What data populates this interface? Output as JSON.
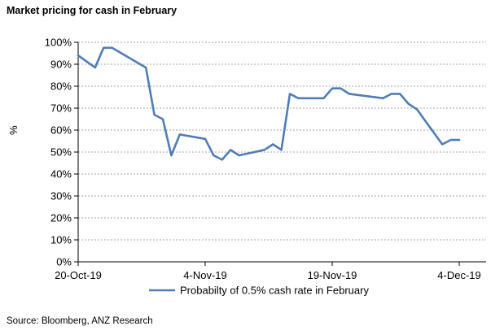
{
  "title": "Market pricing for cash in February",
  "source": "Source: Bloomberg, ANZ Research",
  "chart_data": {
    "type": "line",
    "title": "Market pricing for cash in February",
    "xlabel": "",
    "ylabel": "%",
    "ylim": [
      0,
      100
    ],
    "y_ticks": [
      0,
      10,
      20,
      30,
      40,
      50,
      60,
      70,
      80,
      90,
      100
    ],
    "y_tick_labels": [
      "0%",
      "10%",
      "20%",
      "30%",
      "40%",
      "50%",
      "60%",
      "70%",
      "80%",
      "90%",
      "100%"
    ],
    "x_tick_labels": [
      {
        "label": "20-Oct-19",
        "day": 0
      },
      {
        "label": "4-Nov-19",
        "day": 15
      },
      {
        "label": "19-Nov-19",
        "day": 30
      },
      {
        "label": "4-Dec-19",
        "day": 45
      }
    ],
    "xlim_days": [
      0,
      49
    ],
    "grid": true,
    "legend_position": "bottom",
    "colors": {
      "series": "#4f7db5",
      "grid": "#a6a6a6",
      "axis": "#000000"
    },
    "series": [
      {
        "name": "Probabilty of 0.5% cash rate in February",
        "x": [
          "2019-10-20",
          "2019-10-22",
          "2019-10-23",
          "2019-10-24",
          "2019-10-28",
          "2019-10-29",
          "2019-10-30",
          "2019-10-31",
          "2019-11-01",
          "2019-11-04",
          "2019-11-05",
          "2019-11-06",
          "2019-11-07",
          "2019-11-08",
          "2019-11-11",
          "2019-11-12",
          "2019-11-13",
          "2019-11-14",
          "2019-11-15",
          "2019-11-18",
          "2019-11-19",
          "2019-11-20",
          "2019-11-21",
          "2019-11-25",
          "2019-11-26",
          "2019-11-27",
          "2019-11-28",
          "2019-11-29",
          "2019-12-02",
          "2019-12-03",
          "2019-12-04"
        ],
        "values": [
          94,
          88.5,
          97.5,
          97.5,
          88.5,
          67,
          65,
          48.5,
          58,
          56,
          48.5,
          46.5,
          51,
          48.5,
          51,
          53.5,
          51,
          76.5,
          74.5,
          74.5,
          79,
          79,
          76.5,
          74.5,
          76.5,
          76.5,
          72,
          69.5,
          53.5,
          55.5,
          55.5
        ],
        "days": [
          0,
          2,
          3,
          4,
          8,
          9,
          10,
          11,
          12,
          15,
          16,
          17,
          18,
          19,
          22,
          23,
          24,
          25,
          26,
          29,
          30,
          31,
          32,
          36,
          37,
          38,
          39,
          40,
          43,
          44,
          45
        ]
      }
    ]
  }
}
